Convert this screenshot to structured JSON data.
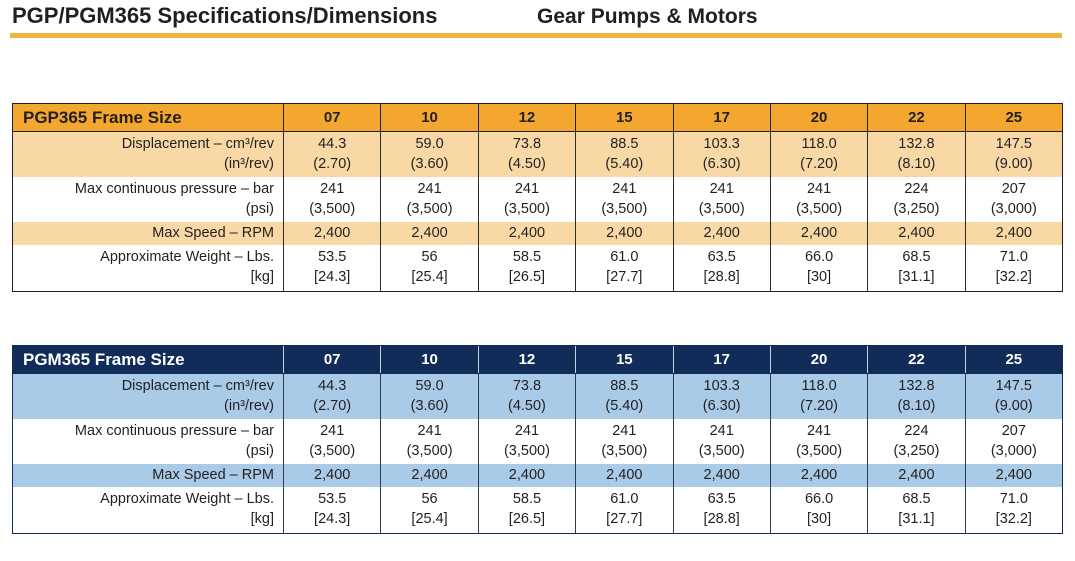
{
  "header": {
    "title": "PGP/PGM365 Specifications/Dimensions",
    "section": "Gear Pumps & Motors"
  },
  "colors": {
    "title_rule": "#EDB53C",
    "text": "#231F20"
  },
  "columns": [
    "07",
    "10",
    "12",
    "15",
    "17",
    "20",
    "22",
    "25"
  ],
  "row_labels": [
    {
      "line1": "Displacement – cm³/rev",
      "line2": "(in³/rev)"
    },
    {
      "line1": "Max continuous pressure – bar",
      "line2": "(psi)"
    },
    {
      "line1": "Max Speed – RPM",
      "line2": ""
    },
    {
      "line1": "Approximate Weight – Lbs.",
      "line2": "[kg]"
    }
  ],
  "tables": [
    {
      "name": "PGP365 Frame Size",
      "theme": {
        "header_bg": "#F3A72E",
        "header_text": "#231F20",
        "stripe": "#F8D9A6",
        "border": "#231F20",
        "header_sep": "#231F20",
        "cell_sep": "#2B2B2B"
      },
      "rows": [
        {
          "cells": [
            {
              "line1": "44.3",
              "line2": "(2.70)"
            },
            {
              "line1": "59.0",
              "line2": "(3.60)"
            },
            {
              "line1": "73.8",
              "line2": "(4.50)"
            },
            {
              "line1": "88.5",
              "line2": "(5.40)"
            },
            {
              "line1": "103.3",
              "line2": "(6.30)"
            },
            {
              "line1": "118.0",
              "line2": "(7.20)"
            },
            {
              "line1": "132.8",
              "line2": "(8.10)"
            },
            {
              "line1": "147.5",
              "line2": "(9.00)"
            }
          ]
        },
        {
          "cells": [
            {
              "line1": "241",
              "line2": "(3,500)"
            },
            {
              "line1": "241",
              "line2": "(3,500)"
            },
            {
              "line1": "241",
              "line2": "(3,500)"
            },
            {
              "line1": "241",
              "line2": "(3,500)"
            },
            {
              "line1": "241",
              "line2": "(3,500)"
            },
            {
              "line1": "241",
              "line2": "(3,500)"
            },
            {
              "line1": "224",
              "line2": "(3,250)"
            },
            {
              "line1": "207",
              "line2": "(3,000)"
            }
          ]
        },
        {
          "cells": [
            {
              "line1": "2,400",
              "line2": ""
            },
            {
              "line1": "2,400",
              "line2": ""
            },
            {
              "line1": "2,400",
              "line2": ""
            },
            {
              "line1": "2,400",
              "line2": ""
            },
            {
              "line1": "2,400",
              "line2": ""
            },
            {
              "line1": "2,400",
              "line2": ""
            },
            {
              "line1": "2,400",
              "line2": ""
            },
            {
              "line1": "2,400",
              "line2": ""
            }
          ]
        },
        {
          "cells": [
            {
              "line1": "53.5",
              "line2": "[24.3]"
            },
            {
              "line1": "56",
              "line2": "[25.4]"
            },
            {
              "line1": "58.5",
              "line2": "[26.5]"
            },
            {
              "line1": "61.0",
              "line2": "[27.7]"
            },
            {
              "line1": "63.5",
              "line2": "[28.8]"
            },
            {
              "line1": "66.0",
              "line2": "[30]"
            },
            {
              "line1": "68.5",
              "line2": "[31.1]"
            },
            {
              "line1": "71.0",
              "line2": "[32.2]"
            }
          ]
        }
      ]
    },
    {
      "name": "PGM365 Frame Size",
      "theme": {
        "header_bg": "#112C58",
        "header_text": "#FFFFFF",
        "stripe": "#A9CBE8",
        "border": "#112C58",
        "header_sep": "#C2D3E6",
        "cell_sep": "#2F3A4E"
      },
      "rows": [
        {
          "cells": [
            {
              "line1": "44.3",
              "line2": "(2.70)"
            },
            {
              "line1": "59.0",
              "line2": "(3.60)"
            },
            {
              "line1": "73.8",
              "line2": "(4.50)"
            },
            {
              "line1": "88.5",
              "line2": "(5.40)"
            },
            {
              "line1": "103.3",
              "line2": "(6.30)"
            },
            {
              "line1": "118.0",
              "line2": "(7.20)"
            },
            {
              "line1": "132.8",
              "line2": "(8.10)"
            },
            {
              "line1": "147.5",
              "line2": "(9.00)"
            }
          ]
        },
        {
          "cells": [
            {
              "line1": "241",
              "line2": "(3,500)"
            },
            {
              "line1": "241",
              "line2": "(3,500)"
            },
            {
              "line1": "241",
              "line2": "(3,500)"
            },
            {
              "line1": "241",
              "line2": "(3,500)"
            },
            {
              "line1": "241",
              "line2": "(3,500)"
            },
            {
              "line1": "241",
              "line2": "(3,500)"
            },
            {
              "line1": "224",
              "line2": "(3,250)"
            },
            {
              "line1": "207",
              "line2": "(3,000)"
            }
          ]
        },
        {
          "cells": [
            {
              "line1": "2,400",
              "line2": ""
            },
            {
              "line1": "2,400",
              "line2": ""
            },
            {
              "line1": "2,400",
              "line2": ""
            },
            {
              "line1": "2,400",
              "line2": ""
            },
            {
              "line1": "2,400",
              "line2": ""
            },
            {
              "line1": "2,400",
              "line2": ""
            },
            {
              "line1": "2,400",
              "line2": ""
            },
            {
              "line1": "2,400",
              "line2": ""
            }
          ]
        },
        {
          "cells": [
            {
              "line1": "53.5",
              "line2": "[24.3]"
            },
            {
              "line1": "56",
              "line2": "[25.4]"
            },
            {
              "line1": "58.5",
              "line2": "[26.5]"
            },
            {
              "line1": "61.0",
              "line2": "[27.7]"
            },
            {
              "line1": "63.5",
              "line2": "[28.8]"
            },
            {
              "line1": "66.0",
              "line2": "[30]"
            },
            {
              "line1": "68.5",
              "line2": "[31.1]"
            },
            {
              "line1": "71.0",
              "line2": "[32.2]"
            }
          ]
        }
      ]
    }
  ]
}
